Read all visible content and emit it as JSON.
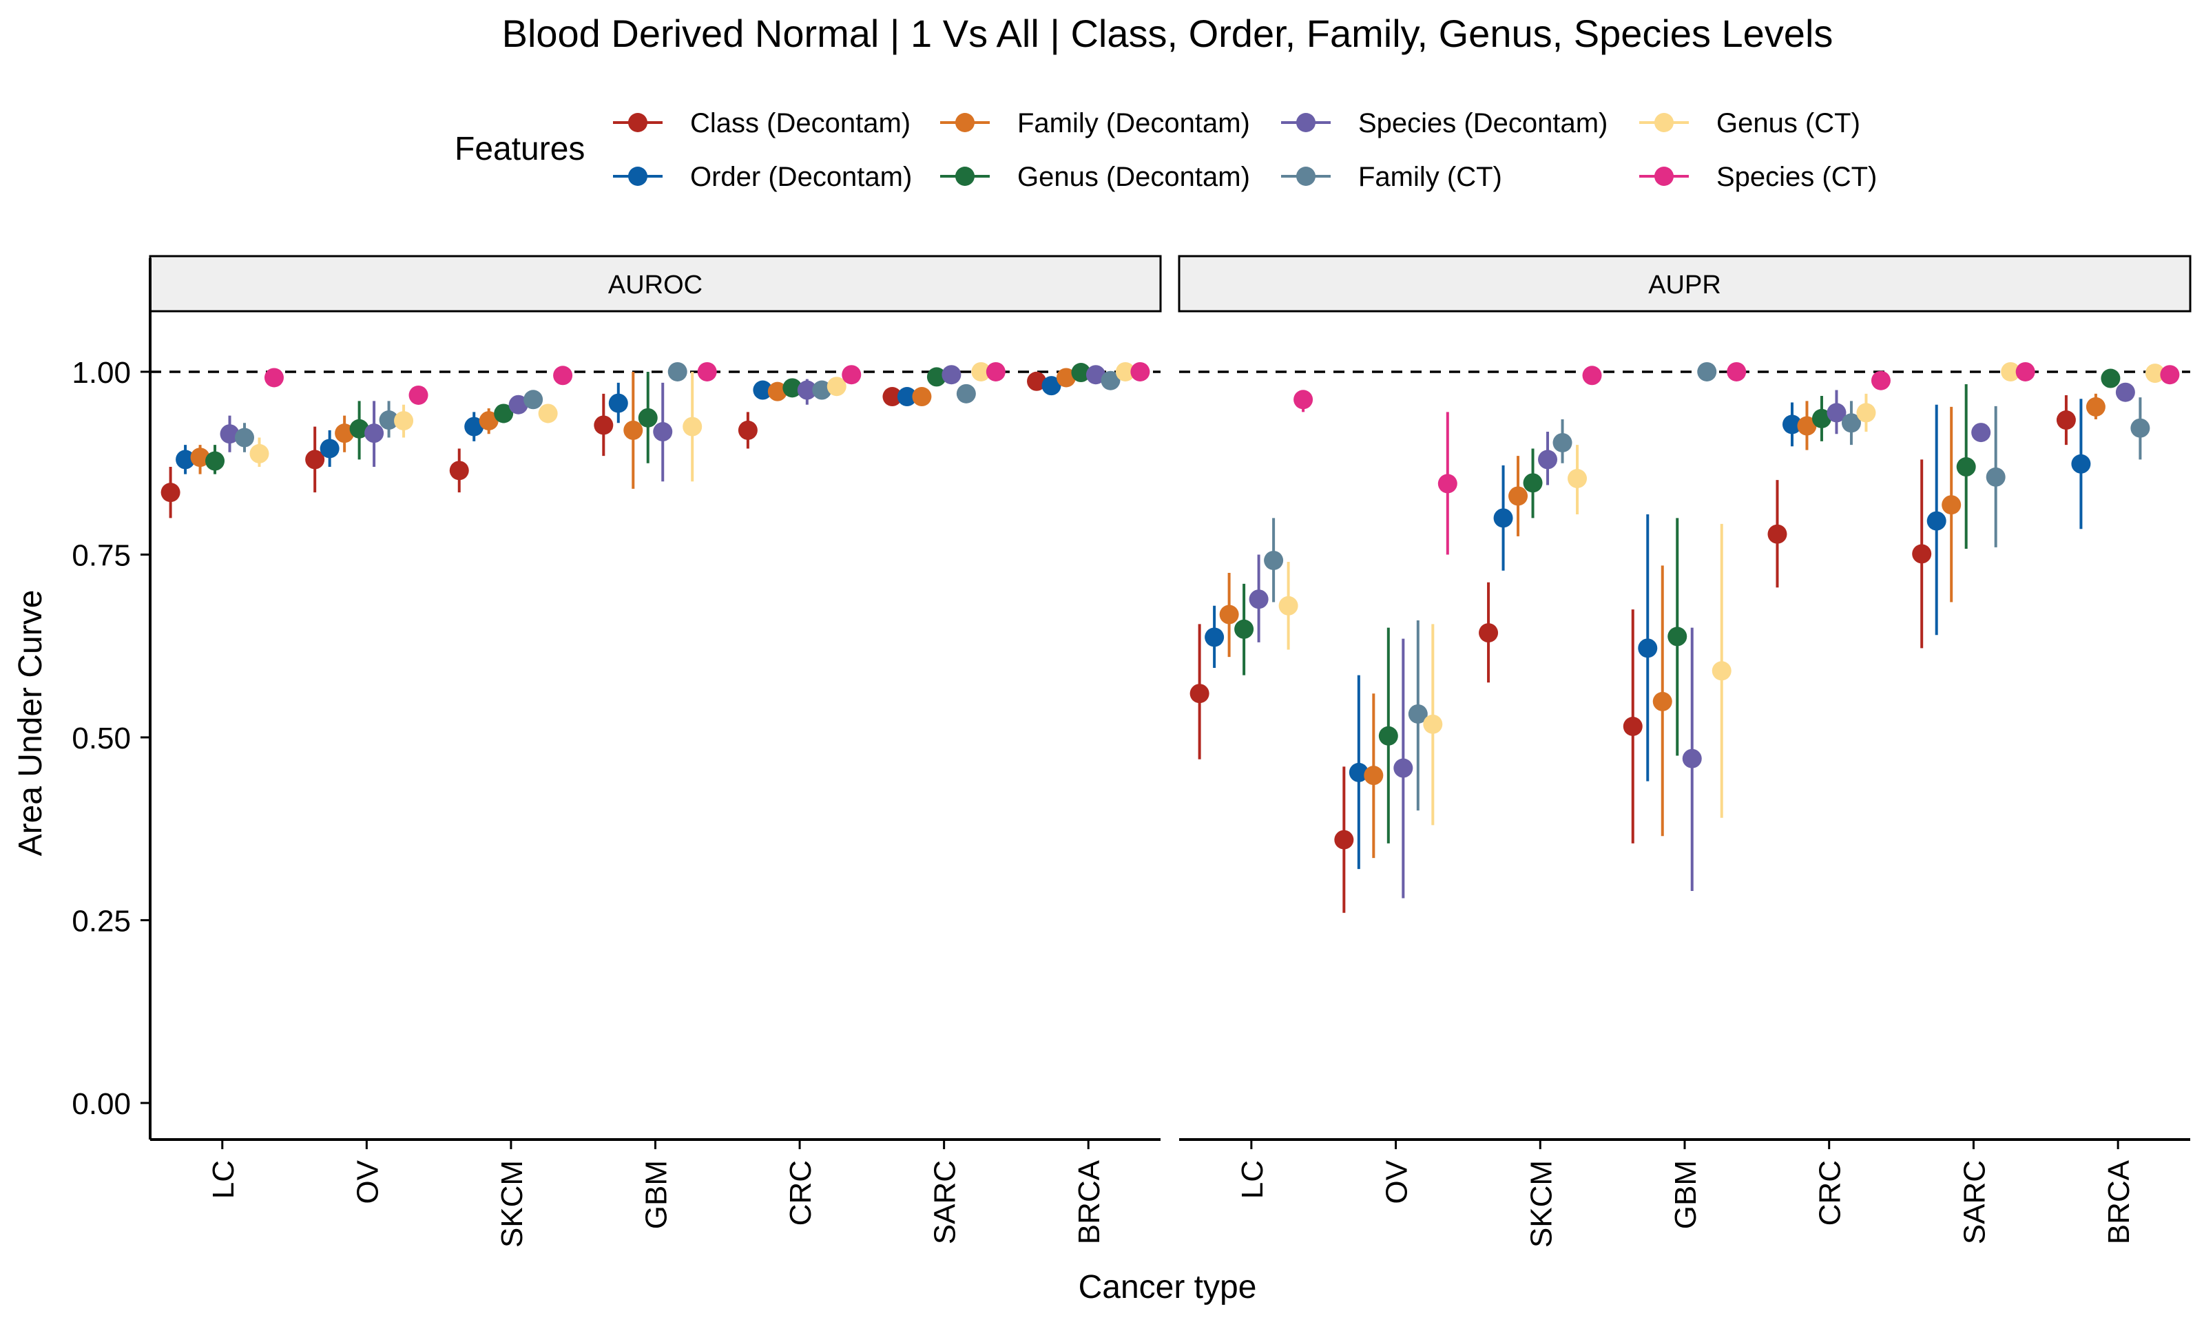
{
  "chart_data": {
    "type": "scatter",
    "title": "Blood Derived Normal | 1 Vs All | Class, Order, Family, Genus, Species Levels",
    "xlabel": "Cancer type",
    "ylabel": "Area Under Curve",
    "ylim": [
      -0.05,
      1.08
    ],
    "yticks": [
      "0.00",
      "0.25",
      "0.50",
      "0.75",
      "1.00"
    ],
    "reference_line": 1.0,
    "categories": [
      "LC",
      "OV",
      "SKCM",
      "GBM",
      "CRC",
      "SARC",
      "BRCA"
    ],
    "legend": {
      "title": "Features",
      "position": "top",
      "columns": [
        [
          "Class (Decontam)",
          "Order (Decontam)"
        ],
        [
          "Family (Decontam)",
          "Genus (Decontam)"
        ],
        [
          "Species (Decontam)",
          "Family (CT)"
        ],
        [
          "Genus (CT)",
          "Species (CT)"
        ]
      ]
    },
    "series": [
      {
        "name": "Class (Decontam)",
        "color": "#B2271F"
      },
      {
        "name": "Order (Decontam)",
        "color": "#0A5DA6"
      },
      {
        "name": "Family (Decontam)",
        "color": "#D97324"
      },
      {
        "name": "Genus (Decontam)",
        "color": "#1E6E3C"
      },
      {
        "name": "Species (Decontam)",
        "color": "#6A5FA8"
      },
      {
        "name": "Family (CT)",
        "color": "#5F8398"
      },
      {
        "name": "Genus (CT)",
        "color": "#FCD98A"
      },
      {
        "name": "Species (CT)",
        "color": "#E22C86"
      }
    ],
    "panels": [
      {
        "label": "AUROC",
        "groups": [
          {
            "category": "LC",
            "points": [
              {
                "series": 0,
                "y": 0.835,
                "lo": 0.8,
                "hi": 0.87
              },
              {
                "series": 1,
                "y": 0.88,
                "lo": 0.86,
                "hi": 0.9
              },
              {
                "series": 2,
                "y": 0.883,
                "lo": 0.86,
                "hi": 0.9
              },
              {
                "series": 3,
                "y": 0.878,
                "lo": 0.86,
                "hi": 0.9
              },
              {
                "series": 4,
                "y": 0.915,
                "lo": 0.89,
                "hi": 0.94
              },
              {
                "series": 5,
                "y": 0.91,
                "lo": 0.89,
                "hi": 0.93
              },
              {
                "series": 6,
                "y": 0.888,
                "lo": 0.87,
                "hi": 0.91
              },
              {
                "series": 7,
                "y": 0.992,
                "lo": 0.99,
                "hi": 0.995
              }
            ]
          },
          {
            "category": "OV",
            "points": [
              {
                "series": 0,
                "y": 0.88,
                "lo": 0.835,
                "hi": 0.925
              },
              {
                "series": 1,
                "y": 0.895,
                "lo": 0.87,
                "hi": 0.92
              },
              {
                "series": 2,
                "y": 0.916,
                "lo": 0.89,
                "hi": 0.94
              },
              {
                "series": 3,
                "y": 0.922,
                "lo": 0.88,
                "hi": 0.96
              },
              {
                "series": 4,
                "y": 0.916,
                "lo": 0.87,
                "hi": 0.96
              },
              {
                "series": 5,
                "y": 0.934,
                "lo": 0.91,
                "hi": 0.96
              },
              {
                "series": 6,
                "y": 0.933,
                "lo": 0.91,
                "hi": 0.955
              },
              {
                "series": 7,
                "y": 0.968,
                "lo": 0.96,
                "hi": 0.975
              }
            ]
          },
          {
            "category": "SKCM",
            "points": [
              {
                "series": 0,
                "y": 0.865,
                "lo": 0.835,
                "hi": 0.895
              },
              {
                "series": 1,
                "y": 0.925,
                "lo": 0.905,
                "hi": 0.945
              },
              {
                "series": 2,
                "y": 0.933,
                "lo": 0.915,
                "hi": 0.95
              },
              {
                "series": 3,
                "y": 0.943,
                "lo": 0.93,
                "hi": 0.955
              },
              {
                "series": 4,
                "y": 0.955,
                "lo": 0.945,
                "hi": 0.965
              },
              {
                "series": 5,
                "y": 0.962,
                "lo": 0.955,
                "hi": 0.97
              },
              {
                "series": 6,
                "y": 0.943,
                "lo": 0.93,
                "hi": 0.955
              },
              {
                "series": 7,
                "y": 0.995,
                "lo": 0.99,
                "hi": 1.0
              }
            ]
          },
          {
            "category": "GBM",
            "points": [
              {
                "series": 0,
                "y": 0.927,
                "lo": 0.885,
                "hi": 0.97
              },
              {
                "series": 1,
                "y": 0.957,
                "lo": 0.93,
                "hi": 0.985
              },
              {
                "series": 2,
                "y": 0.92,
                "lo": 0.84,
                "hi": 1.0
              },
              {
                "series": 3,
                "y": 0.937,
                "lo": 0.875,
                "hi": 1.0
              },
              {
                "series": 4,
                "y": 0.918,
                "lo": 0.85,
                "hi": 0.985
              },
              {
                "series": 5,
                "y": 1.0,
                "lo": 1.0,
                "hi": 1.0
              },
              {
                "series": 6,
                "y": 0.925,
                "lo": 0.85,
                "hi": 1.0
              },
              {
                "series": 7,
                "y": 1.0,
                "lo": 1.0,
                "hi": 1.0
              }
            ]
          },
          {
            "category": "CRC",
            "points": [
              {
                "series": 0,
                "y": 0.92,
                "lo": 0.895,
                "hi": 0.945
              },
              {
                "series": 1,
                "y": 0.975,
                "lo": 0.965,
                "hi": 0.985
              },
              {
                "series": 2,
                "y": 0.973,
                "lo": 0.963,
                "hi": 0.983
              },
              {
                "series": 3,
                "y": 0.978,
                "lo": 0.97,
                "hi": 0.986
              },
              {
                "series": 4,
                "y": 0.975,
                "lo": 0.955,
                "hi": 0.99
              },
              {
                "series": 5,
                "y": 0.975,
                "lo": 0.965,
                "hi": 0.985
              },
              {
                "series": 6,
                "y": 0.98,
                "lo": 0.97,
                "hi": 0.99
              },
              {
                "series": 7,
                "y": 0.996,
                "lo": 0.992,
                "hi": 1.0
              }
            ]
          },
          {
            "category": "SARC",
            "points": [
              {
                "series": 0,
                "y": 0.966,
                "lo": 0.96,
                "hi": 0.972
              },
              {
                "series": 1,
                "y": 0.966,
                "lo": 0.96,
                "hi": 0.972
              },
              {
                "series": 2,
                "y": 0.966,
                "lo": 0.96,
                "hi": 0.972
              },
              {
                "series": 3,
                "y": 0.993,
                "lo": 0.985,
                "hi": 1.0
              },
              {
                "series": 4,
                "y": 0.996,
                "lo": 0.99,
                "hi": 1.0
              },
              {
                "series": 5,
                "y": 0.97,
                "lo": 0.965,
                "hi": 0.975
              },
              {
                "series": 6,
                "y": 1.0,
                "lo": 1.0,
                "hi": 1.0
              },
              {
                "series": 7,
                "y": 1.0,
                "lo": 1.0,
                "hi": 1.0
              }
            ]
          },
          {
            "category": "BRCA",
            "points": [
              {
                "series": 0,
                "y": 0.987,
                "lo": 0.98,
                "hi": 0.995
              },
              {
                "series": 1,
                "y": 0.981,
                "lo": 0.975,
                "hi": 0.988
              },
              {
                "series": 2,
                "y": 0.992,
                "lo": 0.985,
                "hi": 1.0
              },
              {
                "series": 3,
                "y": 0.999,
                "lo": 0.995,
                "hi": 1.0
              },
              {
                "series": 4,
                "y": 0.996,
                "lo": 0.99,
                "hi": 1.0
              },
              {
                "series": 5,
                "y": 0.988,
                "lo": 0.982,
                "hi": 0.995
              },
              {
                "series": 6,
                "y": 1.0,
                "lo": 1.0,
                "hi": 1.0
              },
              {
                "series": 7,
                "y": 1.0,
                "lo": 1.0,
                "hi": 1.0
              }
            ]
          }
        ]
      },
      {
        "label": "AUPR",
        "groups": [
          {
            "category": "LC",
            "points": [
              {
                "series": 0,
                "y": 0.56,
                "lo": 0.47,
                "hi": 0.655
              },
              {
                "series": 1,
                "y": 0.637,
                "lo": 0.595,
                "hi": 0.68
              },
              {
                "series": 2,
                "y": 0.668,
                "lo": 0.61,
                "hi": 0.725
              },
              {
                "series": 3,
                "y": 0.648,
                "lo": 0.585,
                "hi": 0.71
              },
              {
                "series": 4,
                "y": 0.689,
                "lo": 0.63,
                "hi": 0.75
              },
              {
                "series": 5,
                "y": 0.742,
                "lo": 0.685,
                "hi": 0.8
              },
              {
                "series": 6,
                "y": 0.68,
                "lo": 0.62,
                "hi": 0.74
              },
              {
                "series": 7,
                "y": 0.962,
                "lo": 0.945,
                "hi": 0.975
              }
            ]
          },
          {
            "category": "OV",
            "points": [
              {
                "series": 0,
                "y": 0.36,
                "lo": 0.26,
                "hi": 0.46
              },
              {
                "series": 1,
                "y": 0.452,
                "lo": 0.32,
                "hi": 0.585
              },
              {
                "series": 2,
                "y": 0.448,
                "lo": 0.335,
                "hi": 0.56
              },
              {
                "series": 3,
                "y": 0.502,
                "lo": 0.355,
                "hi": 0.65
              },
              {
                "series": 4,
                "y": 0.458,
                "lo": 0.28,
                "hi": 0.635
              },
              {
                "series": 5,
                "y": 0.532,
                "lo": 0.4,
                "hi": 0.66
              },
              {
                "series": 6,
                "y": 0.518,
                "lo": 0.38,
                "hi": 0.655
              },
              {
                "series": 7,
                "y": 0.847,
                "lo": 0.75,
                "hi": 0.945
              }
            ]
          },
          {
            "category": "SKCM",
            "points": [
              {
                "series": 0,
                "y": 0.643,
                "lo": 0.575,
                "hi": 0.712
              },
              {
                "series": 1,
                "y": 0.8,
                "lo": 0.728,
                "hi": 0.872
              },
              {
                "series": 2,
                "y": 0.83,
                "lo": 0.775,
                "hi": 0.885
              },
              {
                "series": 3,
                "y": 0.848,
                "lo": 0.8,
                "hi": 0.895
              },
              {
                "series": 4,
                "y": 0.88,
                "lo": 0.845,
                "hi": 0.918
              },
              {
                "series": 5,
                "y": 0.903,
                "lo": 0.875,
                "hi": 0.935
              },
              {
                "series": 6,
                "y": 0.854,
                "lo": 0.805,
                "hi": 0.9
              },
              {
                "series": 7,
                "y": 0.995,
                "lo": 0.99,
                "hi": 1.0
              }
            ]
          },
          {
            "category": "GBM",
            "points": [
              {
                "series": 0,
                "y": 0.515,
                "lo": 0.355,
                "hi": 0.675
              },
              {
                "series": 1,
                "y": 0.622,
                "lo": 0.44,
                "hi": 0.805
              },
              {
                "series": 2,
                "y": 0.549,
                "lo": 0.365,
                "hi": 0.735
              },
              {
                "series": 3,
                "y": 0.638,
                "lo": 0.475,
                "hi": 0.8
              },
              {
                "series": 4,
                "y": 0.471,
                "lo": 0.29,
                "hi": 0.65
              },
              {
                "series": 5,
                "y": 1.0,
                "lo": 1.0,
                "hi": 1.0
              },
              {
                "series": 6,
                "y": 0.591,
                "lo": 0.39,
                "hi": 0.792
              },
              {
                "series": 7,
                "y": 1.0,
                "lo": 1.0,
                "hi": 1.0
              }
            ]
          },
          {
            "category": "CRC",
            "points": [
              {
                "series": 0,
                "y": 0.778,
                "lo": 0.705,
                "hi": 0.852
              },
              {
                "series": 1,
                "y": 0.928,
                "lo": 0.898,
                "hi": 0.958
              },
              {
                "series": 2,
                "y": 0.926,
                "lo": 0.893,
                "hi": 0.96
              },
              {
                "series": 3,
                "y": 0.936,
                "lo": 0.905,
                "hi": 0.967
              },
              {
                "series": 4,
                "y": 0.944,
                "lo": 0.915,
                "hi": 0.975
              },
              {
                "series": 5,
                "y": 0.93,
                "lo": 0.9,
                "hi": 0.96
              },
              {
                "series": 6,
                "y": 0.944,
                "lo": 0.918,
                "hi": 0.97
              },
              {
                "series": 7,
                "y": 0.988,
                "lo": 0.98,
                "hi": 0.995
              }
            ]
          },
          {
            "category": "SARC",
            "points": [
              {
                "series": 0,
                "y": 0.751,
                "lo": 0.622,
                "hi": 0.88
              },
              {
                "series": 1,
                "y": 0.796,
                "lo": 0.64,
                "hi": 0.955
              },
              {
                "series": 2,
                "y": 0.818,
                "lo": 0.685,
                "hi": 0.952
              },
              {
                "series": 3,
                "y": 0.87,
                "lo": 0.758,
                "hi": 0.983
              },
              {
                "series": 4,
                "y": 0.917,
                "lo": 0.91,
                "hi": 0.925
              },
              {
                "series": 5,
                "y": 0.856,
                "lo": 0.76,
                "hi": 0.953
              },
              {
                "series": 6,
                "y": 1.0,
                "lo": 1.0,
                "hi": 1.0
              },
              {
                "series": 7,
                "y": 1.0,
                "lo": 1.0,
                "hi": 1.0
              }
            ]
          },
          {
            "category": "BRCA",
            "points": [
              {
                "series": 0,
                "y": 0.934,
                "lo": 0.9,
                "hi": 0.968
              },
              {
                "series": 1,
                "y": 0.874,
                "lo": 0.785,
                "hi": 0.963
              },
              {
                "series": 2,
                "y": 0.952,
                "lo": 0.935,
                "hi": 0.97
              },
              {
                "series": 3,
                "y": 0.991,
                "lo": 0.985,
                "hi": 0.998
              },
              {
                "series": 4,
                "y": 0.972,
                "lo": 0.962,
                "hi": 0.982
              },
              {
                "series": 5,
                "y": 0.923,
                "lo": 0.88,
                "hi": 0.965
              },
              {
                "series": 6,
                "y": 0.998,
                "lo": 0.995,
                "hi": 1.0
              },
              {
                "series": 7,
                "y": 0.996,
                "lo": 0.99,
                "hi": 1.0
              }
            ]
          }
        ]
      }
    ]
  }
}
